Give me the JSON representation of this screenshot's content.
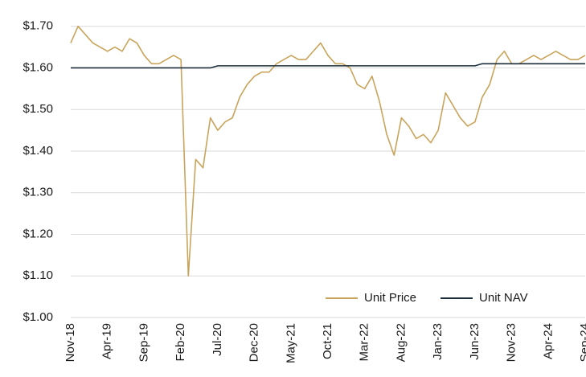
{
  "chart_data": {
    "type": "line",
    "x": [
      "Nov-18",
      "Dec-18",
      "Jan-19",
      "Feb-19",
      "Mar-19",
      "Apr-19",
      "May-19",
      "Jun-19",
      "Jul-19",
      "Aug-19",
      "Sep-19",
      "Oct-19",
      "Nov-19",
      "Dec-19",
      "Jan-20",
      "Feb-20",
      "Mar-20",
      "Apr-20",
      "May-20",
      "Jun-20",
      "Jul-20",
      "Aug-20",
      "Sep-20",
      "Oct-20",
      "Nov-20",
      "Dec-20",
      "Jan-21",
      "Feb-21",
      "Mar-21",
      "Apr-21",
      "May-21",
      "Jun-21",
      "Jul-21",
      "Aug-21",
      "Sep-21",
      "Oct-21",
      "Nov-21",
      "Dec-21",
      "Jan-22",
      "Feb-22",
      "Mar-22",
      "Apr-22",
      "May-22",
      "Jun-22",
      "Jul-22",
      "Aug-22",
      "Sep-22",
      "Oct-22",
      "Nov-22",
      "Dec-22",
      "Jan-23",
      "Feb-23",
      "Mar-23",
      "Apr-23",
      "May-23",
      "Jun-23",
      "Jul-23",
      "Aug-23",
      "Sep-23",
      "Oct-23",
      "Nov-23",
      "Dec-23",
      "Jan-24",
      "Feb-24",
      "Mar-24",
      "Apr-24",
      "May-24",
      "Jun-24",
      "Jul-24",
      "Aug-24",
      "Sep-24"
    ],
    "xticks": [
      "Nov-18",
      "Apr-19",
      "Sep-19",
      "Feb-20",
      "Jul-20",
      "Dec-20",
      "May-21",
      "Oct-21",
      "Mar-22",
      "Aug-22",
      "Jan-23",
      "Jun-23",
      "Nov-23",
      "Apr-24",
      "Sep-24"
    ],
    "series": [
      {
        "name": "Unit Price",
        "color": "#c9a45c",
        "values": [
          1.66,
          1.7,
          1.68,
          1.66,
          1.65,
          1.64,
          1.65,
          1.64,
          1.67,
          1.66,
          1.63,
          1.61,
          1.61,
          1.62,
          1.63,
          1.62,
          1.1,
          1.38,
          1.36,
          1.48,
          1.45,
          1.47,
          1.48,
          1.53,
          1.56,
          1.58,
          1.59,
          1.59,
          1.61,
          1.62,
          1.63,
          1.62,
          1.62,
          1.64,
          1.66,
          1.63,
          1.61,
          1.61,
          1.6,
          1.56,
          1.55,
          1.58,
          1.52,
          1.44,
          1.39,
          1.48,
          1.46,
          1.43,
          1.44,
          1.42,
          1.45,
          1.54,
          1.51,
          1.48,
          1.46,
          1.47,
          1.53,
          1.56,
          1.62,
          1.64,
          1.61,
          1.61,
          1.62,
          1.63,
          1.62,
          1.63,
          1.64,
          1.63,
          1.62,
          1.62,
          1.63
        ]
      },
      {
        "name": "Unit NAV",
        "color": "#1c2e3b",
        "values": [
          1.6,
          1.6,
          1.6,
          1.6,
          1.6,
          1.6,
          1.6,
          1.6,
          1.6,
          1.6,
          1.6,
          1.6,
          1.6,
          1.6,
          1.6,
          1.6,
          1.6,
          1.6,
          1.6,
          1.6,
          1.605,
          1.605,
          1.605,
          1.605,
          1.605,
          1.605,
          1.605,
          1.605,
          1.605,
          1.605,
          1.605,
          1.605,
          1.605,
          1.605,
          1.605,
          1.605,
          1.605,
          1.605,
          1.605,
          1.605,
          1.605,
          1.605,
          1.605,
          1.605,
          1.605,
          1.605,
          1.605,
          1.605,
          1.605,
          1.605,
          1.605,
          1.605,
          1.605,
          1.605,
          1.605,
          1.605,
          1.61,
          1.61,
          1.61,
          1.61,
          1.61,
          1.61,
          1.61,
          1.61,
          1.61,
          1.61,
          1.61,
          1.61,
          1.61,
          1.61,
          1.61
        ]
      }
    ],
    "ylim": [
      1.0,
      1.74
    ],
    "yticks": [
      {
        "value": 1.0,
        "label": "$1.00"
      },
      {
        "value": 1.1,
        "label": "$1.10"
      },
      {
        "value": 1.2,
        "label": "$1.20"
      },
      {
        "value": 1.3,
        "label": "$1.30"
      },
      {
        "value": 1.4,
        "label": "$1.40"
      },
      {
        "value": 1.5,
        "label": "$1.50"
      },
      {
        "value": 1.6,
        "label": "$1.60"
      },
      {
        "value": 1.7,
        "label": "$1.70"
      }
    ],
    "grid": true,
    "legend": "lower right"
  }
}
